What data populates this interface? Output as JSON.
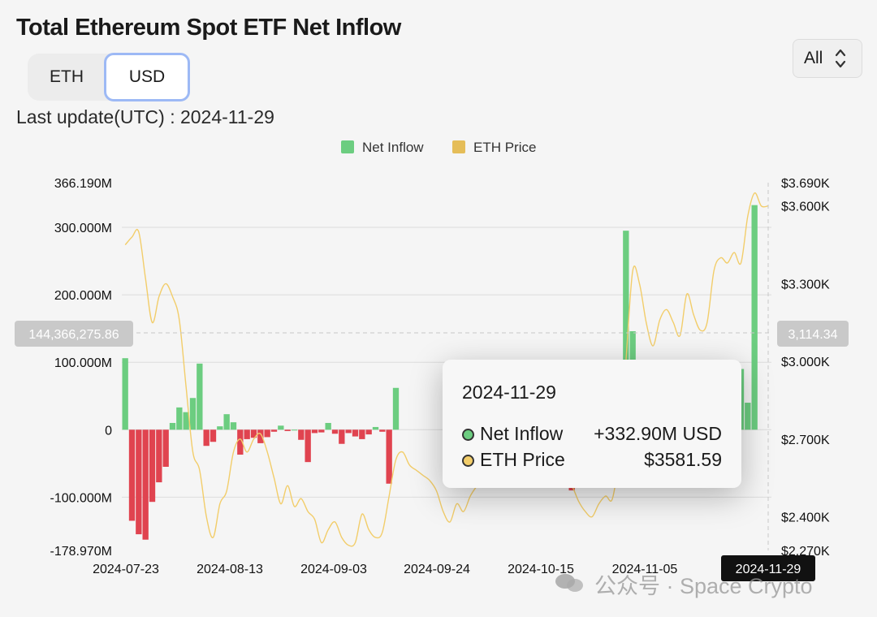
{
  "header": {
    "title": "Total Ethereum Spot ETF Net Inflow",
    "unit_toggle": {
      "options": [
        "ETH",
        "USD"
      ],
      "selected": "USD"
    },
    "range_select": {
      "value": "All"
    },
    "last_update": "Last update(UTC) : 2024-11-29"
  },
  "tooltip": {
    "date": "2024-11-29",
    "net_inflow_label": "Net Inflow",
    "net_inflow_value": "+332.90M USD",
    "eth_price_label": "ETH Price",
    "eth_price_value": "$3581.59"
  },
  "watermark": {
    "text": "公众号 · Space Crypto",
    "icon": "wechat-icon"
  },
  "chart_data": {
    "type": "bar",
    "legend": [
      "Net Inflow",
      "ETH Price"
    ],
    "legend_position": "top-center",
    "colors": {
      "inflow": "#6ccd80",
      "outflow": "#e0434f",
      "price": "#f2cd6a",
      "grid": "#dcdcdc"
    },
    "x_tick_labels": [
      "2024-07-23",
      "2024-08-13",
      "2024-09-03",
      "2024-09-24",
      "2024-10-15",
      "2024-11-05",
      "2024-11-29"
    ],
    "left_axis": {
      "tick_labels": [
        "366.190M",
        "300.000M",
        "200.000M",
        "100.000M",
        "0",
        "-100.000M",
        "-178.970M"
      ],
      "range_millions": [
        -178.97,
        366.19
      ]
    },
    "right_axis": {
      "tick_labels": [
        "$3.690K",
        "$3.600K",
        "$3.300K",
        "$3.000K",
        "$2.700K",
        "$2.400K",
        "$2.270K"
      ],
      "range_usd": [
        2270,
        3690
      ]
    },
    "crosshair": {
      "left_label": "144,366,275.86",
      "right_label": "3,114.34",
      "x_label": "2024-11-29"
    },
    "series": [
      {
        "name": "Net Inflow",
        "unit": "USD millions",
        "points": [
          [
            0,
            106
          ],
          [
            1,
            -135
          ],
          [
            2,
            -155
          ],
          [
            3,
            -163
          ],
          [
            4,
            -107
          ],
          [
            5,
            -78
          ],
          [
            6,
            -55
          ],
          [
            7,
            10
          ],
          [
            8,
            33
          ],
          [
            9,
            26
          ],
          [
            10,
            47
          ],
          [
            11,
            98
          ],
          [
            12,
            -24
          ],
          [
            13,
            -18
          ],
          [
            14,
            5
          ],
          [
            15,
            23
          ],
          [
            16,
            11
          ],
          [
            17,
            -37
          ],
          [
            18,
            -14
          ],
          [
            19,
            -12
          ],
          [
            20,
            -20
          ],
          [
            21,
            -11
          ],
          [
            22,
            -3
          ],
          [
            23,
            6
          ],
          [
            24,
            -2
          ],
          [
            25,
            0
          ],
          [
            26,
            -15
          ],
          [
            27,
            -48
          ],
          [
            28,
            -5
          ],
          [
            29,
            -4
          ],
          [
            30,
            10
          ],
          [
            31,
            -6
          ],
          [
            32,
            -21
          ],
          [
            33,
            -5
          ],
          [
            34,
            -10
          ],
          [
            35,
            -14
          ],
          [
            36,
            -7
          ],
          [
            37,
            4
          ],
          [
            38,
            -3
          ],
          [
            39,
            -80
          ],
          [
            40,
            62
          ],
          [
            66,
            -90
          ],
          [
            70,
            12
          ],
          [
            72,
            70
          ],
          [
            73,
            80
          ],
          [
            74,
            295
          ],
          [
            75,
            146
          ],
          [
            76,
            103
          ],
          [
            88,
            40
          ],
          [
            89,
            20
          ],
          [
            90,
            25
          ],
          [
            91,
            90
          ],
          [
            92,
            40
          ],
          [
            93,
            332.9
          ]
        ]
      },
      {
        "name": "ETH Price",
        "unit": "USD",
        "points": [
          [
            0,
            3450
          ],
          [
            1,
            3480
          ],
          [
            2,
            3500
          ],
          [
            3,
            3320
          ],
          [
            4,
            3150
          ],
          [
            5,
            3250
          ],
          [
            6,
            3300
          ],
          [
            7,
            3250
          ],
          [
            8,
            3160
          ],
          [
            9,
            2900
          ],
          [
            10,
            2650
          ],
          [
            11,
            2580
          ],
          [
            12,
            2400
          ],
          [
            13,
            2320
          ],
          [
            14,
            2450
          ],
          [
            15,
            2500
          ],
          [
            16,
            2650
          ],
          [
            17,
            2700
          ],
          [
            18,
            2650
          ],
          [
            19,
            2700
          ],
          [
            20,
            2720
          ],
          [
            21,
            2650
          ],
          [
            22,
            2550
          ],
          [
            23,
            2450
          ],
          [
            24,
            2520
          ],
          [
            25,
            2440
          ],
          [
            26,
            2470
          ],
          [
            27,
            2420
          ],
          [
            28,
            2390
          ],
          [
            29,
            2300
          ],
          [
            30,
            2350
          ],
          [
            31,
            2380
          ],
          [
            32,
            2320
          ],
          [
            33,
            2290
          ],
          [
            34,
            2300
          ],
          [
            35,
            2410
          ],
          [
            36,
            2350
          ],
          [
            37,
            2320
          ],
          [
            38,
            2340
          ],
          [
            39,
            2480
          ],
          [
            40,
            2620
          ],
          [
            41,
            2650
          ],
          [
            42,
            2600
          ],
          [
            43,
            2580
          ],
          [
            44,
            2560
          ],
          [
            45,
            2540
          ],
          [
            46,
            2500
          ],
          [
            47,
            2420
          ],
          [
            48,
            2380
          ],
          [
            49,
            2450
          ],
          [
            50,
            2420
          ],
          [
            51,
            2480
          ],
          [
            52,
            2520
          ],
          [
            53,
            2560
          ],
          [
            54,
            2600
          ],
          [
            55,
            2610
          ],
          [
            56,
            2620
          ],
          [
            57,
            2580
          ],
          [
            58,
            2560
          ],
          [
            59,
            2590
          ],
          [
            60,
            2620
          ],
          [
            61,
            2640
          ],
          [
            62,
            2660
          ],
          [
            63,
            2620
          ],
          [
            64,
            2580
          ],
          [
            65,
            2540
          ],
          [
            66,
            2520
          ],
          [
            67,
            2460
          ],
          [
            68,
            2420
          ],
          [
            69,
            2400
          ],
          [
            70,
            2450
          ],
          [
            71,
            2480
          ],
          [
            72,
            2470
          ],
          [
            73,
            2650
          ],
          [
            74,
            3000
          ],
          [
            75,
            3350
          ],
          [
            76,
            3300
          ],
          [
            77,
            3150
          ],
          [
            78,
            3060
          ],
          [
            79,
            3160
          ],
          [
            80,
            3200
          ],
          [
            81,
            3150
          ],
          [
            82,
            3100
          ],
          [
            83,
            3260
          ],
          [
            84,
            3180
          ],
          [
            85,
            3120
          ],
          [
            86,
            3150
          ],
          [
            87,
            3350
          ],
          [
            88,
            3400
          ],
          [
            89,
            3380
          ],
          [
            90,
            3420
          ],
          [
            91,
            3380
          ],
          [
            92,
            3560
          ],
          [
            93,
            3650
          ],
          [
            94,
            3600
          ],
          [
            95,
            3600
          ]
        ]
      }
    ]
  }
}
